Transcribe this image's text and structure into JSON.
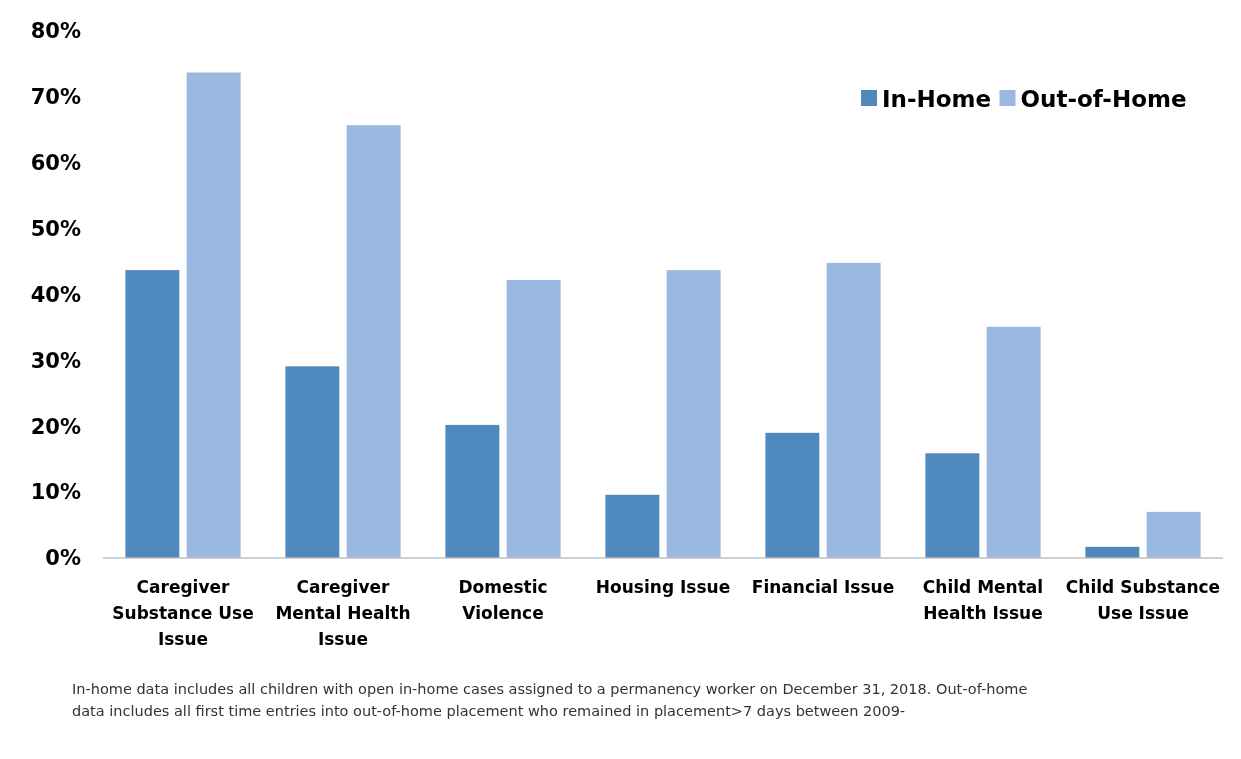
{
  "chart_data": {
    "type": "bar",
    "categories": [
      "Caregiver Substance Use Issue",
      "Caregiver Mental Health Issue",
      "Domestic Violence",
      "Housing Issue",
      "Financial Issue",
      "Child Mental Health Issue",
      "Child Substance Use Issue"
    ],
    "series": [
      {
        "name": "In-Home",
        "color": "#4f88bd",
        "values": [
          43.7,
          29.1,
          20.2,
          9.6,
          19.0,
          15.9,
          1.7
        ]
      },
      {
        "name": "Out-of-Home",
        "color": "#99b9e0",
        "values": [
          73.7,
          65.7,
          42.2,
          43.7,
          44.8,
          35.1,
          7.0
        ]
      }
    ],
    "ylim": [
      0,
      80
    ],
    "yticks": [
      {
        "value": 0,
        "label": "0%"
      },
      {
        "value": 10,
        "label": "10%"
      },
      {
        "value": 20,
        "label": "20%"
      },
      {
        "value": 30,
        "label": "30%"
      },
      {
        "value": 40,
        "label": "40%"
      },
      {
        "value": 50,
        "label": "50%"
      },
      {
        "value": 60,
        "label": "60%"
      },
      {
        "value": 70,
        "label": "70%"
      },
      {
        "value": 80,
        "label": "80%"
      }
    ],
    "grid": false,
    "legend": "top right",
    "annotations": [
      "In-home data includes all children with open in-home cases assigned to a permanency worker on December 31, 2018.  Out-of-home data includes all first time entries into out-of-home placement who remained in placement>7 days between 2009-"
    ]
  }
}
